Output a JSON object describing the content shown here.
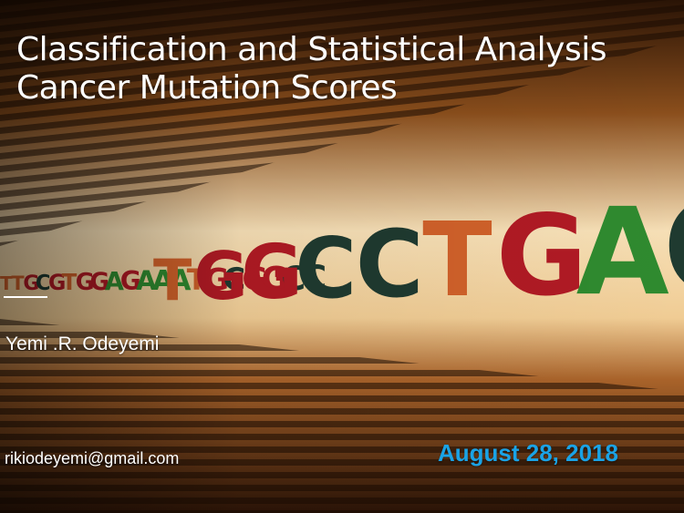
{
  "slide": {
    "title_line1": "Classification and Statistical Analysis",
    "title_line2": "Cancer Mutation Scores",
    "author": "Yemi .R. Odeyemi",
    "email": "rikiodeyemi@gmail.com",
    "date": "August 28, 2018",
    "date_color": "#1aa3e6"
  },
  "background": {
    "description_icon": "dna-sequence-wall-photo",
    "sequence_large": "TGGCCTGACACCTTCGCAC",
    "sequence_small": "TTGCGTGGAGAAATGCGGCC",
    "letter_colors": {
      "A": "#2f8a2f",
      "C": "#1f3a30",
      "G": "#b01a24",
      "T": "#d0612a"
    }
  }
}
